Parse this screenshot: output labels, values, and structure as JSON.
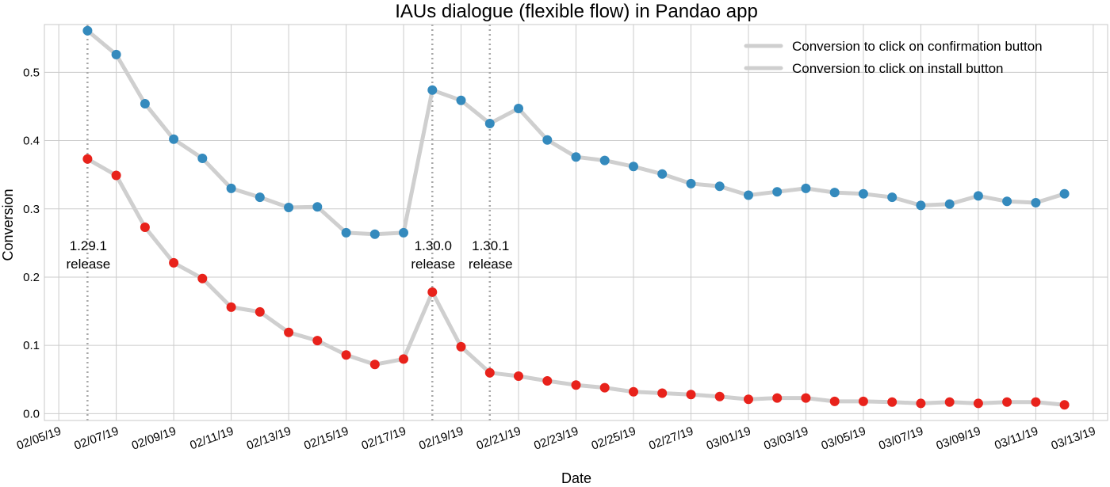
{
  "chart_data": {
    "type": "line",
    "title": "IAUs dialogue (flexible flow) in Pandao app",
    "xlabel": "Date",
    "ylabel": "Conversion",
    "grid": true,
    "legend_position": "top-right",
    "line_color": "#cfcfcf",
    "x_ticks": [
      "02/05/19",
      "02/07/19",
      "02/09/19",
      "02/11/19",
      "02/13/19",
      "02/15/19",
      "02/17/19",
      "02/19/19",
      "02/21/19",
      "02/23/19",
      "02/25/19",
      "02/27/19",
      "03/01/19",
      "03/03/19",
      "03/05/19",
      "03/07/19",
      "03/09/19",
      "03/11/19",
      "03/13/19"
    ],
    "x_range": [
      "2019-02-04T12:00",
      "2019-03-13T12:00"
    ],
    "y_ticks": [
      "0.0",
      "0.1",
      "0.2",
      "0.3",
      "0.4",
      "0.5"
    ],
    "ylim": [
      -0.01,
      0.57
    ],
    "x": [
      "2019-02-06",
      "2019-02-07",
      "2019-02-08",
      "2019-02-09",
      "2019-02-10",
      "2019-02-11",
      "2019-02-12",
      "2019-02-13",
      "2019-02-14",
      "2019-02-15",
      "2019-02-16",
      "2019-02-17",
      "2019-02-18",
      "2019-02-19",
      "2019-02-20",
      "2019-02-21",
      "2019-02-22",
      "2019-02-23",
      "2019-02-24",
      "2019-02-25",
      "2019-02-26",
      "2019-02-27",
      "2019-02-28",
      "2019-03-01",
      "2019-03-02",
      "2019-03-03",
      "2019-03-04",
      "2019-03-05",
      "2019-03-06",
      "2019-03-07",
      "2019-03-08",
      "2019-03-09",
      "2019-03-10",
      "2019-03-11",
      "2019-03-12"
    ],
    "series": [
      {
        "name": "Conversion to click on confirmation button",
        "marker_color": "#348abd",
        "values": [
          0.561,
          0.526,
          0.454,
          0.402,
          0.374,
          0.33,
          0.317,
          0.302,
          0.303,
          0.265,
          0.263,
          0.265,
          0.474,
          0.459,
          0.425,
          0.447,
          0.401,
          0.376,
          0.371,
          0.362,
          0.351,
          0.337,
          0.333,
          0.32,
          0.325,
          0.33,
          0.324,
          0.322,
          0.317,
          0.305,
          0.307,
          0.319,
          0.311,
          0.309,
          0.322
        ]
      },
      {
        "name": "Conversion to click on install button",
        "marker_color": "#e8221b",
        "values": [
          0.373,
          0.349,
          0.273,
          0.221,
          0.198,
          0.156,
          0.149,
          0.119,
          0.107,
          0.086,
          0.072,
          0.08,
          0.178,
          0.098,
          0.06,
          0.055,
          0.048,
          0.042,
          0.038,
          0.032,
          0.03,
          0.028,
          0.025,
          0.021,
          0.023,
          0.023,
          0.018,
          0.018,
          0.017,
          0.015,
          0.017,
          0.015,
          0.017,
          0.017,
          0.013
        ]
      }
    ],
    "annotations": [
      {
        "x": "2019-02-06",
        "line1": "1.29.1",
        "line2": "release"
      },
      {
        "x": "2019-02-18",
        "line1": "1.30.0",
        "line2": "release"
      },
      {
        "x": "2019-02-20",
        "line1": "1.30.1",
        "line2": "release"
      }
    ]
  }
}
